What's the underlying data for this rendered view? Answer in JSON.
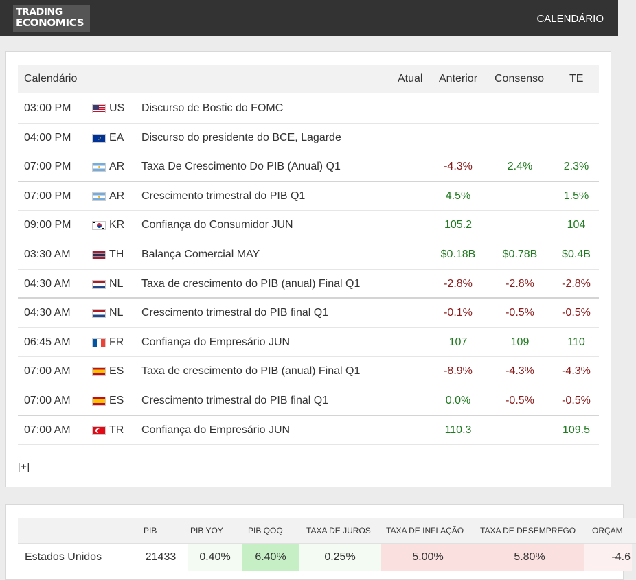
{
  "header": {
    "logo_line1": "TRADING",
    "logo_line2": "ECONOMICS",
    "nav_calendar": "CALENDÁRIO"
  },
  "calendar": {
    "columns": {
      "title": "Calendário",
      "actual": "Atual",
      "previous": "Anterior",
      "consensus": "Consenso",
      "te": "TE"
    },
    "rows": [
      {
        "time": "03:00 PM",
        "country": "US",
        "flag": "us-flag",
        "event": "Discurso de Bostic do FOMC",
        "previous": "",
        "previous_sign": "",
        "consensus": "",
        "consensus_sign": "",
        "te": "",
        "te_sign": ""
      },
      {
        "time": "04:00 PM",
        "country": "EA",
        "flag": "eu-flag",
        "event": "Discurso do presidente do BCE, Lagarde",
        "previous": "",
        "previous_sign": "",
        "consensus": "",
        "consensus_sign": "",
        "te": "",
        "te_sign": ""
      },
      {
        "time": "07:00 PM",
        "country": "AR",
        "flag": "ar-flag",
        "event": "Taxa De Crescimento Do PIB (Anual)  Q1",
        "previous": "-4.3%",
        "previous_sign": "neg",
        "consensus": "2.4%",
        "consensus_sign": "pos",
        "te": "2.3%",
        "te_sign": "pos"
      },
      {
        "time": "07:00 PM",
        "country": "AR",
        "flag": "ar-flag",
        "event": "Crescimento trimestral do PIB  Q1",
        "previous": "4.5%",
        "previous_sign": "pos",
        "consensus": "",
        "consensus_sign": "",
        "te": "1.5%",
        "te_sign": "pos"
      },
      {
        "time": "09:00 PM",
        "country": "KR",
        "flag": "kr-flag",
        "event": "Confiança do Consumidor  JUN",
        "previous": "105.2",
        "previous_sign": "pos",
        "consensus": "",
        "consensus_sign": "",
        "te": "104",
        "te_sign": "pos"
      },
      {
        "time": "03:30 AM",
        "country": "TH",
        "flag": "th-flag",
        "event": "Balança Comercial  MAY",
        "previous": "$0.18B",
        "previous_sign": "pos",
        "consensus": "$0.78B",
        "consensus_sign": "pos",
        "te": "$0.4B",
        "te_sign": "pos"
      },
      {
        "time": "04:30 AM",
        "country": "NL",
        "flag": "nl-flag",
        "event": "Taxa de crescimento do PIB (anual) Final  Q1",
        "previous": "-2.8%",
        "previous_sign": "neg",
        "consensus": "-2.8%",
        "consensus_sign": "neg",
        "te": "-2.8%",
        "te_sign": "neg"
      },
      {
        "time": "04:30 AM",
        "country": "NL",
        "flag": "nl-flag",
        "event": "Crescimento trimestral do PIB final  Q1",
        "previous": "-0.1%",
        "previous_sign": "neg",
        "consensus": "-0.5%",
        "consensus_sign": "neg",
        "te": "-0.5%",
        "te_sign": "neg"
      },
      {
        "time": "06:45 AM",
        "country": "FR",
        "flag": "fr-flag",
        "event": "Confiança do Empresário  JUN",
        "previous": "107",
        "previous_sign": "pos",
        "consensus": "109",
        "consensus_sign": "pos",
        "te": "110",
        "te_sign": "pos"
      },
      {
        "time": "07:00 AM",
        "country": "ES",
        "flag": "es-flag",
        "event": "Taxa de crescimento do PIB (anual) Final  Q1",
        "previous": "-8.9%",
        "previous_sign": "neg",
        "consensus": "-4.3%",
        "consensus_sign": "neg",
        "te": "-4.3%",
        "te_sign": "neg"
      },
      {
        "time": "07:00 AM",
        "country": "ES",
        "flag": "es-flag",
        "event": "Crescimento trimestral do PIB final  Q1",
        "previous": "0.0%",
        "previous_sign": "pos",
        "consensus": "-0.5%",
        "consensus_sign": "neg",
        "te": "-0.5%",
        "te_sign": "neg"
      },
      {
        "time": "07:00 AM",
        "country": "TR",
        "flag": "tr-flag",
        "event": "Confiança do Empresário  JUN",
        "previous": "110.3",
        "previous_sign": "pos",
        "consensus": "",
        "consensus_sign": "",
        "te": "109.5",
        "te_sign": "pos"
      }
    ],
    "more": "[+]"
  },
  "indicators": {
    "columns": [
      "PIB",
      "PIB YOY",
      "PIB QOQ",
      "TAXA DE JUROS",
      "TAXA DE INFLAÇÃO",
      "TAXA DE DESEMPREGO",
      "ORÇAM"
    ],
    "row": {
      "country": "Estados Unidos",
      "values": [
        "21433",
        "0.40%",
        "6.40%",
        "0.25%",
        "5.00%",
        "5.80%",
        "-4.6"
      ]
    }
  },
  "colors": {
    "topbar": "#333333",
    "negative": "#8b1a1a",
    "positive": "#1f7a1f",
    "highlight_green": "#c6efc6",
    "highlight_pink": "#fbe0e0"
  }
}
